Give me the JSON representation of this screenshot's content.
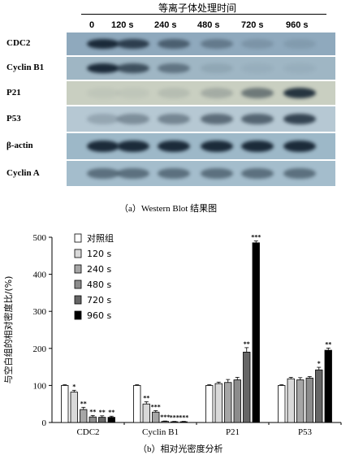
{
  "blot": {
    "title": "等离子体处理时间",
    "timepoints": [
      "0",
      "120 s",
      "240 s",
      "480 s",
      "720 s",
      "960 s"
    ],
    "bands": [
      {
        "label": "CDC2",
        "bg": "#8fa9bd",
        "intensity": [
          0.95,
          0.8,
          0.55,
          0.35,
          0.15,
          0.1
        ]
      },
      {
        "label": "Cyclin B1",
        "bg": "#9fb6c4",
        "intensity": [
          0.95,
          0.7,
          0.45,
          0.1,
          0.05,
          0.05
        ]
      },
      {
        "label": "P21",
        "bg": "#c9cfc1",
        "intensity": [
          0.05,
          0.05,
          0.1,
          0.2,
          0.5,
          0.9
        ]
      },
      {
        "label": "P53",
        "bg": "#b6c8d3",
        "intensity": [
          0.2,
          0.35,
          0.4,
          0.55,
          0.6,
          0.8
        ]
      },
      {
        "label": "β-actin",
        "bg": "#9db8c8",
        "intensity": [
          0.95,
          0.95,
          0.95,
          0.95,
          0.95,
          0.95
        ]
      },
      {
        "label": "Cyclin A",
        "bg": "#a4bdcc",
        "intensity": [
          0.5,
          0.5,
          0.5,
          0.5,
          0.5,
          0.5
        ]
      }
    ],
    "caption": "（a）Western Blot 结果图"
  },
  "chart_data": {
    "type": "bar",
    "categories": [
      "CDC2",
      "Cyclin B1",
      "P21",
      "P53"
    ],
    "series": [
      {
        "name": "对照组",
        "color": "#ffffff",
        "values": [
          100,
          100,
          100,
          100
        ],
        "errors": [
          2,
          2,
          2,
          2
        ],
        "sig": [
          "",
          "",
          "",
          ""
        ]
      },
      {
        "name": "120 s",
        "color": "#d9d9d9",
        "values": [
          82,
          50,
          105,
          118
        ],
        "errors": [
          5,
          6,
          4,
          4
        ],
        "sig": [
          "*",
          "**",
          "",
          ""
        ]
      },
      {
        "name": "240 s",
        "color": "#a6a6a6",
        "values": [
          35,
          28,
          108,
          115
        ],
        "errors": [
          6,
          4,
          8,
          6
        ],
        "sig": [
          "**",
          "***",
          "",
          ""
        ]
      },
      {
        "name": "480 s",
        "color": "#8c8c8c",
        "values": [
          15,
          3,
          115,
          120
        ],
        "errors": [
          4,
          1,
          7,
          4
        ],
        "sig": [
          "**",
          "***",
          "",
          ""
        ]
      },
      {
        "name": "720 s",
        "color": "#666666",
        "values": [
          14,
          2,
          190,
          142
        ],
        "errors": [
          4,
          1,
          12,
          7
        ],
        "sig": [
          "**",
          "***",
          "**",
          "*"
        ]
      },
      {
        "name": "960 s",
        "color": "#000000",
        "values": [
          14,
          2,
          485,
          195
        ],
        "errors": [
          3,
          1,
          5,
          6
        ],
        "sig": [
          "**",
          "***",
          "***",
          "**"
        ]
      }
    ],
    "ylabel": "与空白组的相对密度比/(%)",
    "ylim": [
      0,
      500
    ],
    "yticks": [
      0,
      100,
      200,
      300,
      400,
      500
    ],
    "legend_position": "top-left",
    "caption": "（b）相对光密度分析"
  }
}
